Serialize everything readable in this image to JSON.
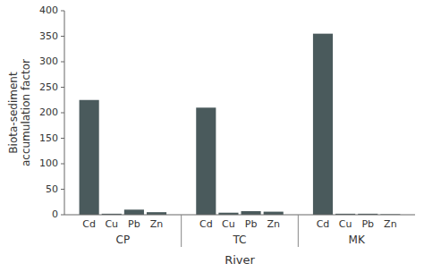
{
  "chart_data": {
    "type": "bar",
    "xlabel": "River",
    "ylabel": "Biota-sediment\naccumulation factor",
    "categories": [
      "CP",
      "TC",
      "MK"
    ],
    "series": [
      {
        "name": "Cd",
        "values": [
          225,
          210,
          355
        ]
      },
      {
        "name": "Cu",
        "values": [
          2,
          4,
          2
        ]
      },
      {
        "name": "Pb",
        "values": [
          10,
          7,
          2
        ]
      },
      {
        "name": "Zn",
        "values": [
          5,
          6,
          1
        ]
      }
    ],
    "color": "#4a5a5c",
    "ylim": [
      0,
      400
    ],
    "yticks": [
      0,
      50,
      100,
      150,
      200,
      250,
      300,
      350,
      400
    ]
  }
}
